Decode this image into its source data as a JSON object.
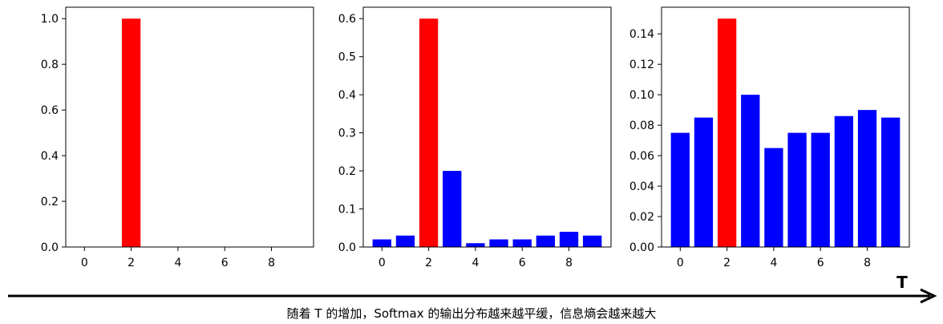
{
  "chart_data": [
    {
      "type": "bar",
      "x": [
        0,
        1,
        2,
        3,
        4,
        5,
        6,
        7,
        8,
        9
      ],
      "values": [
        0,
        0,
        1.0,
        0,
        0,
        0,
        0,
        0,
        0,
        0
      ],
      "highlight_index": 2,
      "bar_colors": [
        "#0000ff",
        "#0000ff",
        "#ff0000",
        "#0000ff",
        "#0000ff",
        "#0000ff",
        "#0000ff",
        "#0000ff",
        "#0000ff",
        "#0000ff"
      ],
      "xlim": [
        -0.8,
        9.8
      ],
      "ylim": [
        0,
        1.05
      ],
      "xticks": [
        0,
        2,
        4,
        6,
        8
      ],
      "yticks": [
        0.0,
        0.2,
        0.4,
        0.6,
        0.8,
        1.0
      ],
      "ytick_labels": [
        "0.0",
        "0.2",
        "0.4",
        "0.6",
        "0.8",
        "1.0"
      ]
    },
    {
      "type": "bar",
      "x": [
        0,
        1,
        2,
        3,
        4,
        5,
        6,
        7,
        8,
        9
      ],
      "values": [
        0.02,
        0.03,
        0.6,
        0.2,
        0.01,
        0.02,
        0.02,
        0.03,
        0.04,
        0.03
      ],
      "highlight_index": 2,
      "bar_colors": [
        "#0000ff",
        "#0000ff",
        "#ff0000",
        "#0000ff",
        "#0000ff",
        "#0000ff",
        "#0000ff",
        "#0000ff",
        "#0000ff",
        "#0000ff"
      ],
      "xlim": [
        -0.8,
        9.8
      ],
      "ylim": [
        0,
        0.63
      ],
      "xticks": [
        0,
        2,
        4,
        6,
        8
      ],
      "yticks": [
        0.0,
        0.1,
        0.2,
        0.3,
        0.4,
        0.5,
        0.6
      ],
      "ytick_labels": [
        "0.0",
        "0.1",
        "0.2",
        "0.3",
        "0.4",
        "0.5",
        "0.6"
      ]
    },
    {
      "type": "bar",
      "x": [
        0,
        1,
        2,
        3,
        4,
        5,
        6,
        7,
        8,
        9
      ],
      "values": [
        0.075,
        0.085,
        0.15,
        0.1,
        0.065,
        0.075,
        0.075,
        0.086,
        0.09,
        0.085
      ],
      "highlight_index": 2,
      "bar_colors": [
        "#0000ff",
        "#0000ff",
        "#ff0000",
        "#0000ff",
        "#0000ff",
        "#0000ff",
        "#0000ff",
        "#0000ff",
        "#0000ff",
        "#0000ff"
      ],
      "xlim": [
        -0.8,
        9.8
      ],
      "ylim": [
        0,
        0.1575
      ],
      "xticks": [
        0,
        2,
        4,
        6,
        8
      ],
      "yticks": [
        0.0,
        0.02,
        0.04,
        0.06,
        0.08,
        0.1,
        0.12,
        0.14
      ],
      "ytick_labels": [
        "0.00",
        "0.02",
        "0.04",
        "0.06",
        "0.08",
        "0.10",
        "0.12",
        "0.14"
      ]
    }
  ],
  "arrow": {
    "label": "T"
  },
  "caption": "随着 T 的增加，Softmax 的输出分布越来越平缓，信息熵会越来越大"
}
